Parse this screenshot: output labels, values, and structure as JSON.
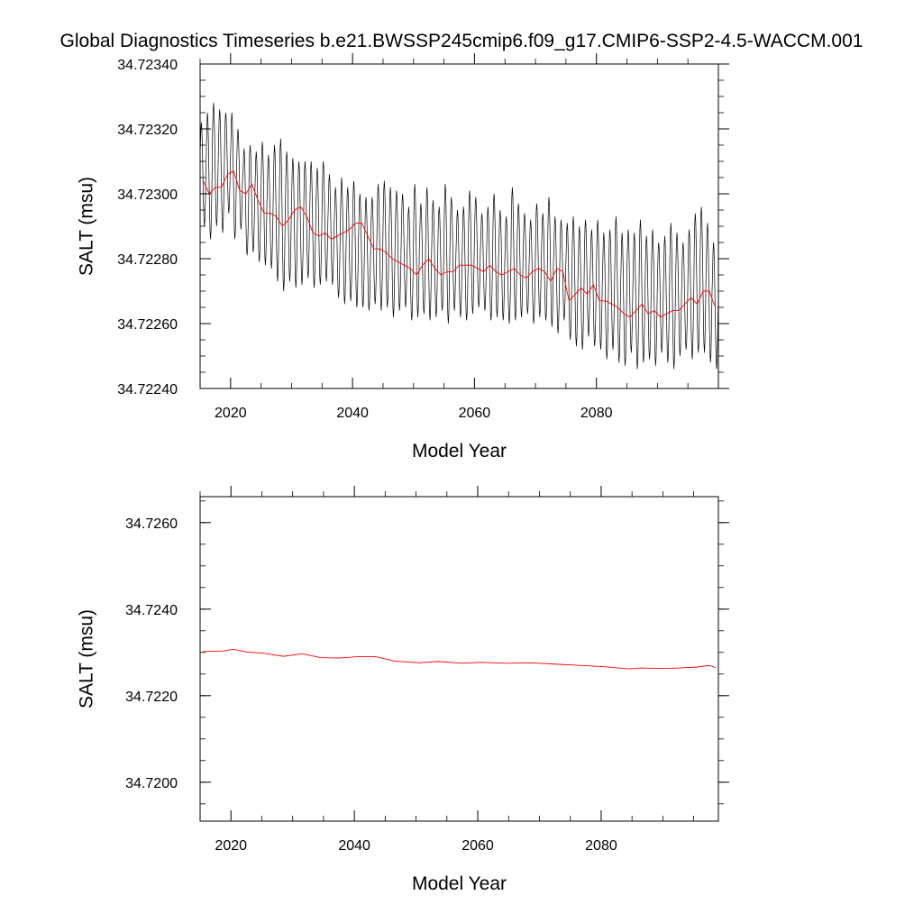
{
  "title": "Global Diagnostics Timeseries b.e21.BWSSP245cmip6.f09_g17.CMIP6-SSP2-4.5-WACCM.001",
  "colors": {
    "monthly": "#000000",
    "annual": "#ff0000",
    "axes": "#000000"
  },
  "chart_data": [
    {
      "type": "line",
      "xlabel": "Model Year",
      "ylabel": "SALT (msu)",
      "xlim": [
        2015,
        2100
      ],
      "ylim": [
        34.7224,
        34.7234
      ],
      "xticks": [
        2020,
        2040,
        2060,
        2080
      ],
      "xtick_labels": [
        "2020",
        "2040",
        "2060",
        "2080"
      ],
      "yticks": [
        34.7224,
        34.7226,
        34.7228,
        34.723,
        34.7232,
        34.7234
      ],
      "ytick_labels": [
        "34.72240",
        "34.72260",
        "34.72280",
        "34.72300",
        "34.72320",
        "34.72340"
      ],
      "series": [
        {
          "kind": "monthly",
          "color": "#000000",
          "x_start": 2015.04,
          "x_step": 0.0833333,
          "annual_cycle_peak": 34.7232,
          "annual_cycle_trough": 34.72286,
          "values_peak_by_year": [
            34.72322,
            34.72325,
            34.72328,
            34.72326,
            34.72325,
            34.72325,
            34.7232,
            34.72314,
            34.72315,
            34.72313,
            34.72316,
            34.72312,
            34.72315,
            34.72317,
            34.72313,
            34.72311,
            34.7231,
            34.7231,
            34.7231,
            34.72308,
            34.7231,
            34.72306,
            34.72302,
            34.72305,
            34.72302,
            34.72304,
            34.723,
            34.72299,
            34.72299,
            34.72303,
            34.72304,
            34.72302,
            34.72301,
            34.723,
            34.72296,
            34.72303,
            34.72297,
            34.72302,
            34.72298,
            34.72296,
            34.72303,
            34.72299,
            34.72295,
            34.72296,
            34.72301,
            34.72299,
            34.72294,
            34.72296,
            34.723,
            34.72295,
            34.72293,
            34.72302,
            34.72297,
            34.72294,
            34.72292,
            34.72297,
            34.72294,
            34.72299,
            34.72293,
            34.72292,
            34.72291,
            34.72293,
            34.7229,
            34.72292,
            34.72289,
            34.72292,
            34.72288,
            34.72289,
            34.72293,
            34.72288,
            34.72289,
            34.72288,
            34.72292,
            34.72287,
            34.72289,
            34.72285,
            34.72287,
            34.72291,
            34.72288,
            34.72285,
            34.72289,
            34.72294,
            34.72296,
            34.72291,
            34.72285
          ],
          "values_trough_by_year": [
            34.7229,
            34.72286,
            34.7229,
            34.72288,
            34.72294,
            34.72286,
            34.72289,
            34.72281,
            34.72282,
            34.72279,
            34.72278,
            34.72277,
            34.72273,
            34.7227,
            34.72273,
            34.72271,
            34.72272,
            34.72274,
            34.72271,
            34.72272,
            34.72273,
            34.72272,
            34.72268,
            34.72266,
            34.72267,
            34.72265,
            34.72265,
            34.72264,
            34.72266,
            34.72264,
            34.72265,
            34.72262,
            34.72264,
            34.72265,
            34.72261,
            34.72262,
            34.72263,
            34.72261,
            34.72262,
            34.72264,
            34.7226,
            34.72264,
            34.72262,
            34.72261,
            34.72263,
            34.72265,
            34.72264,
            34.72261,
            34.72262,
            34.72261,
            34.7226,
            34.72261,
            34.72262,
            34.72263,
            34.7226,
            34.72262,
            34.72261,
            34.72259,
            34.72257,
            34.72261,
            34.72255,
            34.72253,
            34.72252,
            34.72256,
            34.72253,
            34.72252,
            34.72249,
            34.72252,
            34.72248,
            34.72247,
            34.72251,
            34.72246,
            34.72248,
            34.72249,
            34.72247,
            34.72251,
            34.72248,
            34.72246,
            34.7225,
            34.72252,
            34.72249,
            34.72251,
            34.72251,
            34.72248,
            34.72246
          ]
        },
        {
          "kind": "annual",
          "color": "#ff0000",
          "x": [
            2015.5,
            2016.5,
            2017.5,
            2018.5,
            2019.5,
            2020.5,
            2021.5,
            2022.5,
            2023.5,
            2024.5,
            2025.5,
            2026.5,
            2027.5,
            2028.5,
            2029.5,
            2030.5,
            2031.5,
            2032.5,
            2033.5,
            2034.5,
            2035.5,
            2036.5,
            2037.5,
            2038.5,
            2039.5,
            2040.5,
            2041.5,
            2042.5,
            2043.5,
            2044.5,
            2045.5,
            2046.5,
            2047.5,
            2048.5,
            2049.5,
            2050.5,
            2051.5,
            2052.5,
            2053.5,
            2054.5,
            2055.5,
            2056.5,
            2057.5,
            2058.5,
            2059.5,
            2060.5,
            2061.5,
            2062.5,
            2063.5,
            2064.5,
            2065.5,
            2066.5,
            2067.5,
            2068.5,
            2069.5,
            2070.5,
            2071.5,
            2072.5,
            2073.5,
            2074.5,
            2075.5,
            2076.5,
            2077.5,
            2078.5,
            2079.5,
            2080.5,
            2081.5,
            2082.5,
            2083.5,
            2084.5,
            2085.5,
            2086.5,
            2087.5,
            2088.5,
            2089.5,
            2090.5,
            2091.5,
            2092.5,
            2093.5,
            2094.5,
            2095.5,
            2096.5,
            2097.5,
            2098.5,
            2099.5
          ],
          "values": [
            34.72304,
            34.723,
            34.72302,
            34.72302,
            34.72306,
            34.72307,
            34.72301,
            34.723,
            34.72303,
            34.72298,
            34.72294,
            34.72294,
            34.72293,
            34.7229,
            34.72292,
            34.72295,
            34.72296,
            34.72293,
            34.72288,
            34.72287,
            34.72288,
            34.72286,
            34.72287,
            34.72288,
            34.72289,
            34.72291,
            34.72291,
            34.72287,
            34.72283,
            34.72283,
            34.72282,
            34.7228,
            34.72279,
            34.72278,
            34.72277,
            34.72275,
            34.72278,
            34.7228,
            34.72277,
            34.72275,
            34.72276,
            34.72276,
            34.72278,
            34.72278,
            34.72278,
            34.72277,
            34.72276,
            34.72278,
            34.72276,
            34.72275,
            34.72276,
            34.72277,
            34.72275,
            34.72274,
            34.72276,
            34.72277,
            34.72276,
            34.72273,
            34.72277,
            34.72276,
            34.72267,
            34.72269,
            34.72271,
            34.72269,
            34.72272,
            34.72267,
            34.72267,
            34.72266,
            34.72265,
            34.72263,
            34.72262,
            34.72264,
            34.72266,
            34.72263,
            34.72264,
            34.72262,
            34.72263,
            34.72264,
            34.72264,
            34.72266,
            34.72268,
            34.72266,
            34.7227,
            34.7227,
            34.72265
          ]
        }
      ]
    },
    {
      "type": "line",
      "xlabel": "Model Year",
      "ylabel": "SALT (msu)",
      "xlim": [
        2015,
        2099
      ],
      "ylim": [
        34.7191,
        34.7266
      ],
      "xticks": [
        2020,
        2040,
        2060,
        2080
      ],
      "xtick_labels": [
        "2020",
        "2040",
        "2060",
        "2080"
      ],
      "yticks": [
        34.72,
        34.722,
        34.724,
        34.726
      ],
      "ytick_labels": [
        "34.7200",
        "34.7220",
        "34.7240",
        "34.7260"
      ],
      "series": [
        {
          "kind": "annual",
          "color": "#ff0000",
          "x": [
            2015.5,
            2018.5,
            2020.5,
            2022.5,
            2025.5,
            2028.5,
            2031.5,
            2034.5,
            2037.5,
            2040.5,
            2043.5,
            2046.5,
            2050.5,
            2053.5,
            2057.5,
            2060.5,
            2064.5,
            2068.5,
            2072.5,
            2076.5,
            2080.5,
            2084.5,
            2086.5,
            2088.5,
            2090.5,
            2092.5,
            2095.5,
            2097.5,
            2098.5
          ],
          "values": [
            34.72302,
            34.72303,
            34.72307,
            34.72301,
            34.72298,
            34.72291,
            34.72297,
            34.72288,
            34.72287,
            34.7229,
            34.7229,
            34.7228,
            34.72276,
            34.72279,
            34.72275,
            34.72277,
            34.72275,
            34.72276,
            34.72273,
            34.7227,
            34.72267,
            34.72262,
            34.72264,
            34.72263,
            34.72263,
            34.72264,
            34.72266,
            34.7227,
            34.72265
          ]
        }
      ]
    }
  ]
}
